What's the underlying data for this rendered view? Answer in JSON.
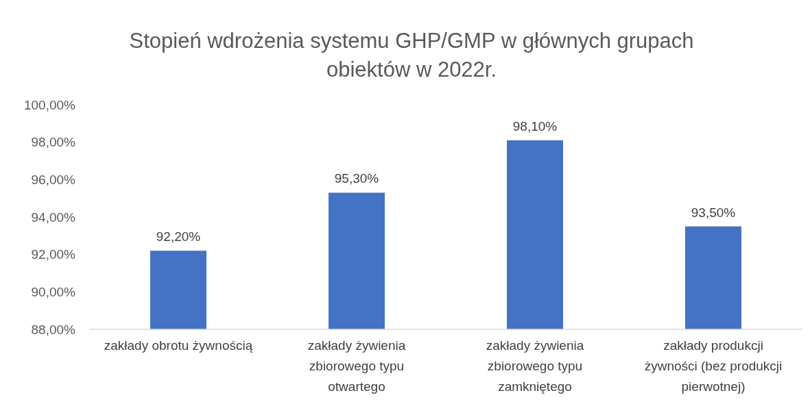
{
  "chart_data": {
    "type": "bar",
    "title": "Stopień wdrożenia systemu GHP/GMP w głównych grupach obiektów w 2022r.",
    "categories": [
      "zakłady obrotu żywnością",
      "zakłady żywienia zbiorowego typu otwartego",
      "zakłady żywienia zbiorowego typu zamkniętego",
      "zakłady produkcji żywności (bez produkcji pierwotnej)"
    ],
    "values": [
      92.2,
      95.3,
      98.1,
      93.5
    ],
    "value_labels": [
      "92,20%",
      "95,30%",
      "98,10%",
      "93,50%"
    ],
    "color": "#4472c4",
    "ylim": [
      88,
      100
    ],
    "yticks": [
      {
        "value": 88,
        "label": "88,00%"
      },
      {
        "value": 90,
        "label": "90,00%"
      },
      {
        "value": 92,
        "label": "92,00%"
      },
      {
        "value": 94,
        "label": "94,00%"
      },
      {
        "value": 96,
        "label": "96,00%"
      },
      {
        "value": 98,
        "label": "98,00%"
      },
      {
        "value": 100,
        "label": "100,00%"
      }
    ],
    "grid": false
  }
}
